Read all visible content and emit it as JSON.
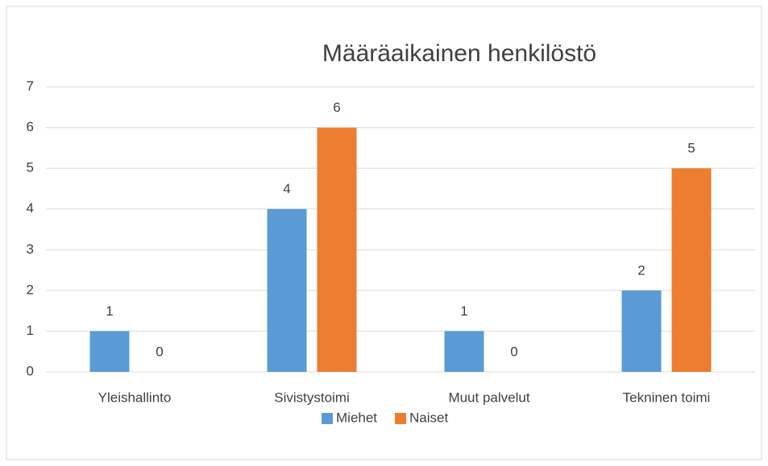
{
  "chart_data": {
    "type": "bar",
    "title": "Määräaikainen henkilöstö",
    "categories": [
      "Yleishallinto",
      "Sivistystoimi",
      "Muut palvelut",
      "Tekninen toimi"
    ],
    "series": [
      {
        "name": "Miehet",
        "color": "#5b9bd5",
        "values": [
          1,
          4,
          1,
          2
        ]
      },
      {
        "name": "Naiset",
        "color": "#ed7d31",
        "values": [
          0,
          6,
          0,
          5
        ]
      }
    ],
    "ylim": [
      0,
      7
    ],
    "yticks": [
      0,
      1,
      2,
      3,
      4,
      5,
      6,
      7
    ],
    "grid": true,
    "legend": "bottom"
  }
}
